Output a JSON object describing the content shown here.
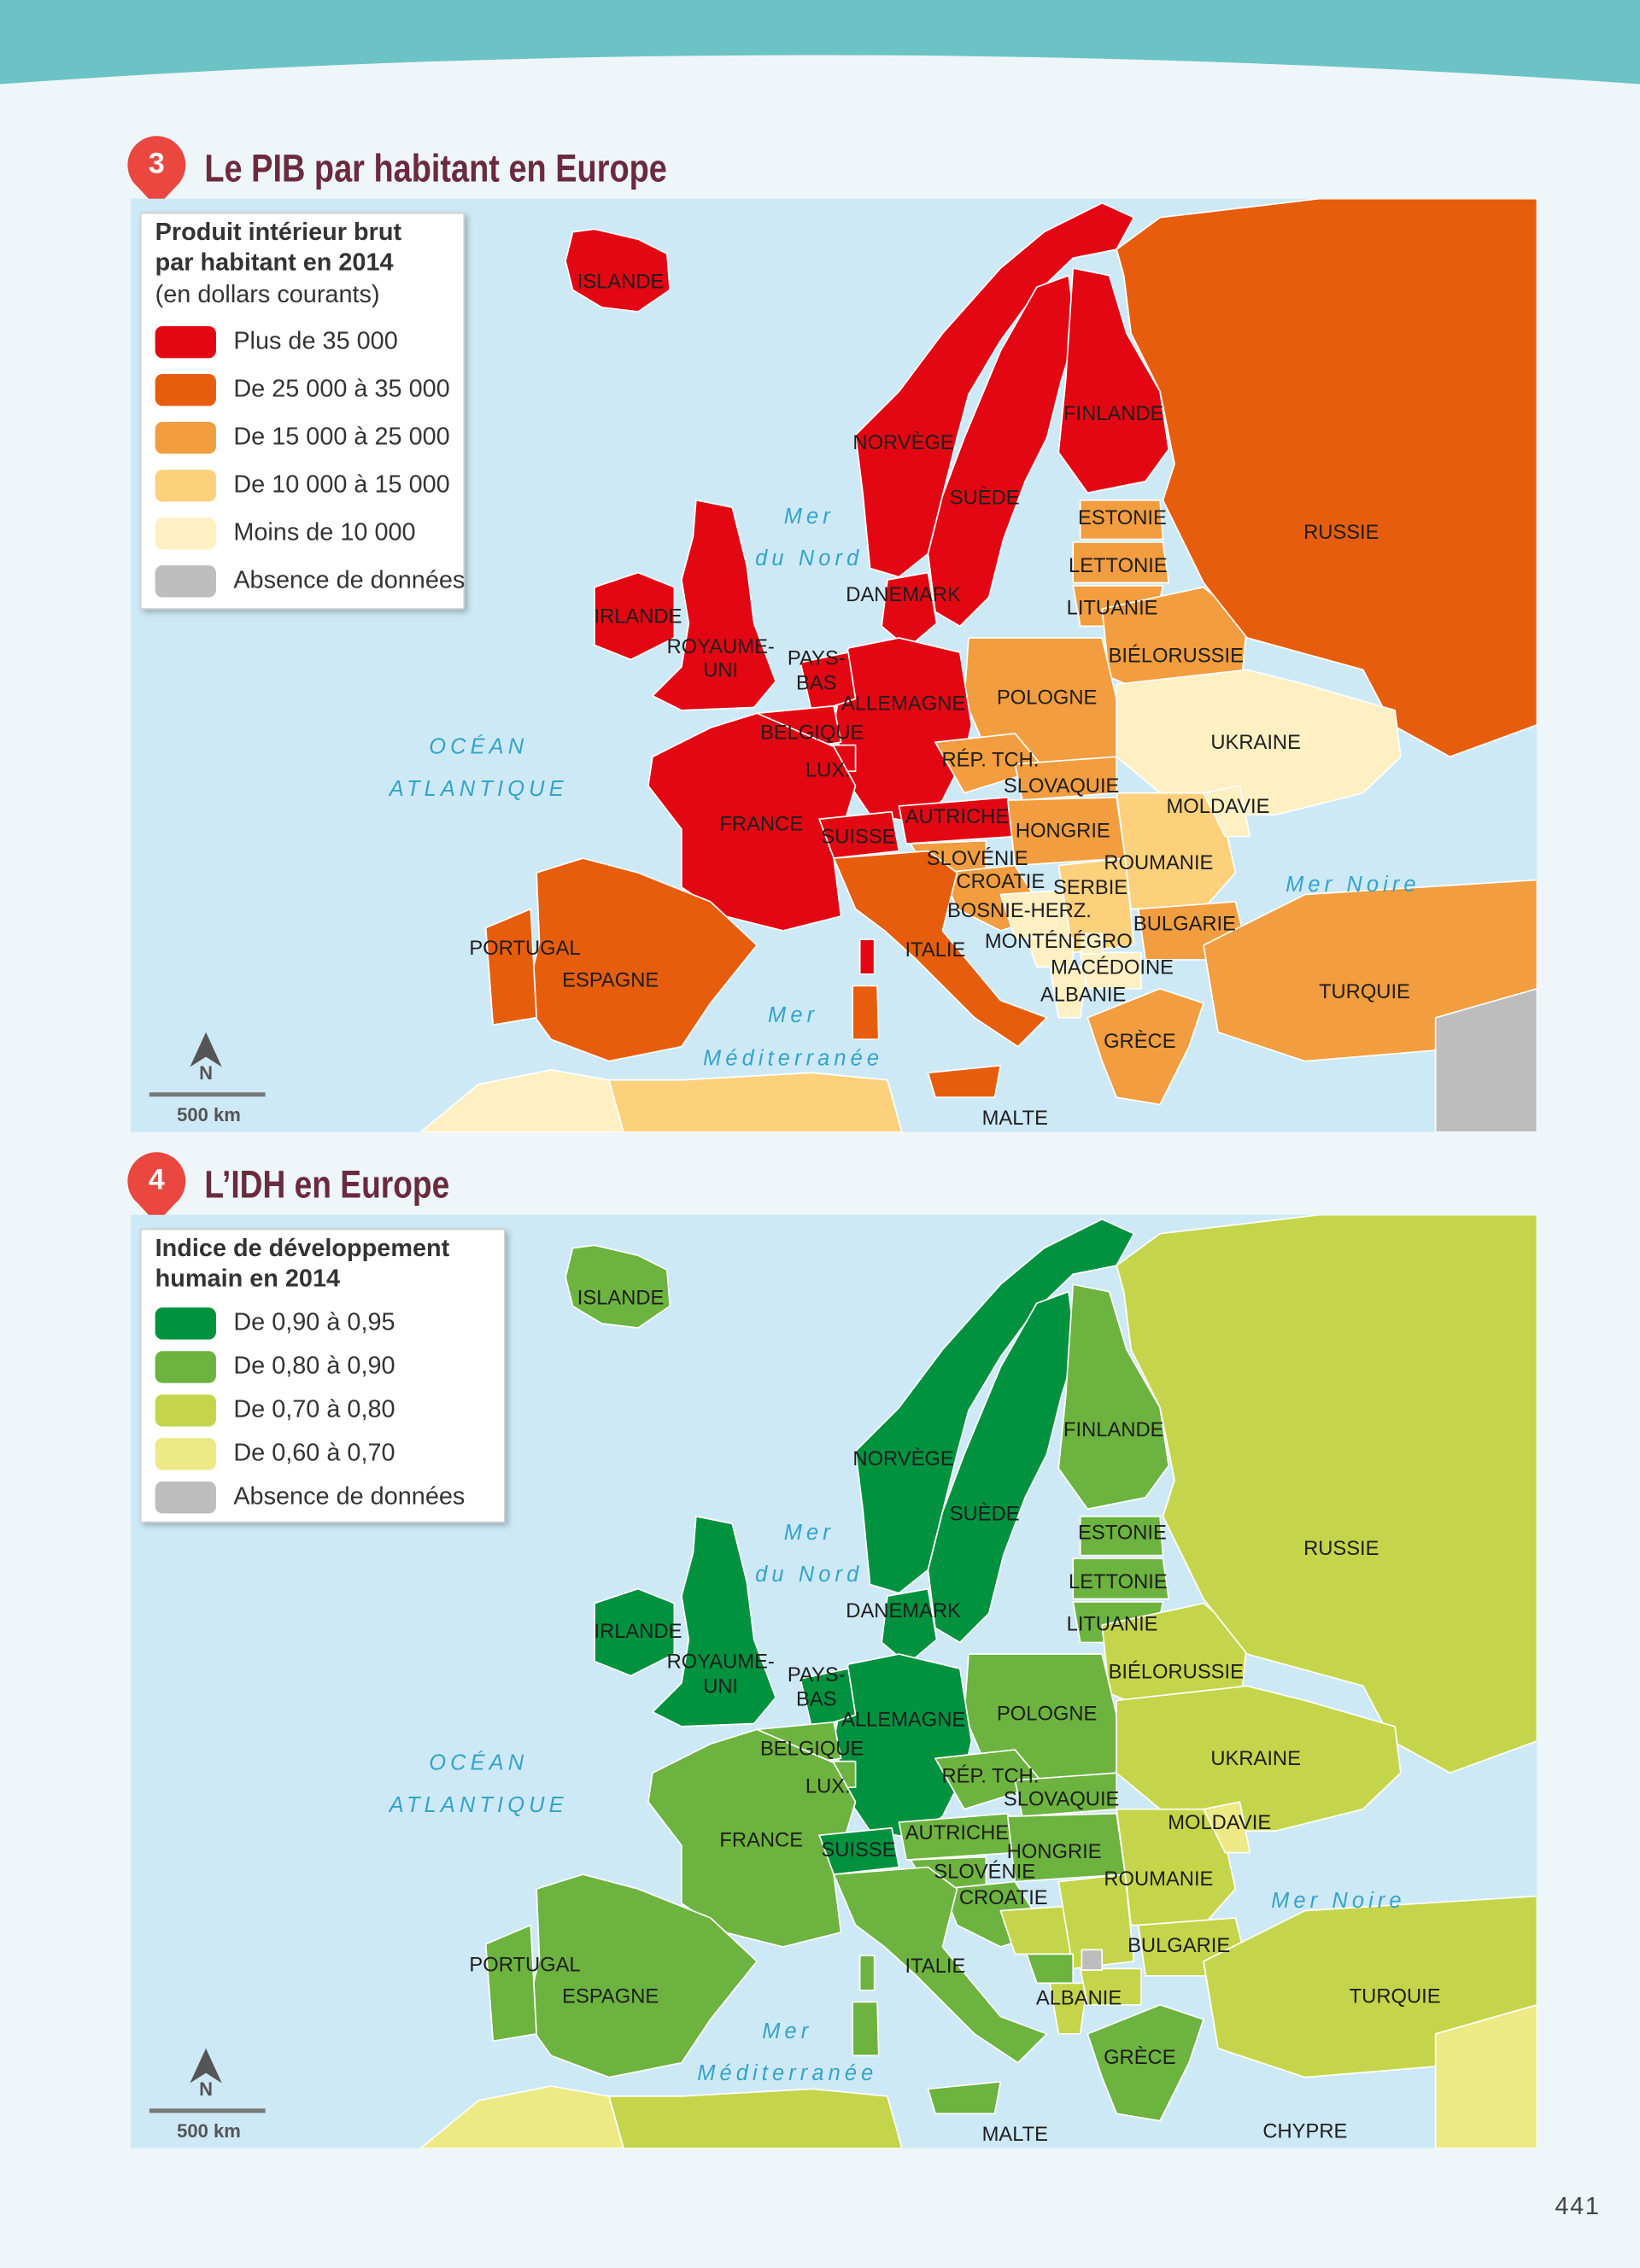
{
  "page_number": "441",
  "maps": [
    {
      "number": "3",
      "title": "Le PIB par habitant en Europe",
      "legend": {
        "title": [
          "Produit intérieur brut",
          "par habitant en 2014"
        ],
        "subtitle": "(en dollars courants)",
        "items": [
          {
            "label": "Plus de 35 000",
            "color": "#e30613"
          },
          {
            "label": "De 25 000 à 35 000",
            "color": "#e65d0e"
          },
          {
            "label": "De 15 000 à 25 000",
            "color": "#f29d3f"
          },
          {
            "label": "De 10 000 à 15 000",
            "color": "#fdd07c"
          },
          {
            "label": "Moins de 10 000",
            "color": "#fef0c3"
          },
          {
            "label": "Absence de données",
            "color": "#bdbdbd"
          }
        ]
      },
      "region_classes": [
        0,
        0,
        0,
        0,
        0,
        0,
        0,
        2,
        2,
        2,
        2,
        1,
        2,
        4,
        0,
        0,
        0,
        0,
        0,
        0,
        0,
        2,
        2,
        2,
        2,
        2,
        4,
        3,
        4,
        4,
        4,
        3,
        4,
        2,
        2,
        1,
        1,
        1,
        0,
        1,
        1,
        2,
        4,
        3,
        5,
        4
      ],
      "labels": [
        "ISLANDE",
        "NORVÈGE",
        "SUÈDE",
        "FINLANDE",
        "ESTONIE",
        "LETTONIE",
        "LITUANIE",
        "DANEMARK",
        "RUSSIE",
        "IRLANDE",
        "ROYAUME-",
        "UNI",
        "PAYS-",
        "BAS",
        "BIÉLORUSSIE",
        "POLOGNE",
        "ALLEMAGNE",
        "BELGIQUE",
        "UKRAINE",
        "RÉP. TCH.",
        "LUX.",
        "SLOVAQUIE",
        "MOLDAVIE",
        "FRANCE",
        "AUTRICHE",
        "SUISSE",
        "HONGRIE",
        "SLOVÉNIE",
        "ROUMANIE",
        "CROATIE",
        "SERBIE",
        "BOSNIE-HERZ.",
        "BULGARIE",
        "PORTUGAL",
        "ITALIE",
        "MONTÉNÉGRO",
        "MACÉDOINE",
        "ESPAGNE",
        "TURQUIE",
        "ALBANIE",
        "GRÈCE",
        "MALTE"
      ],
      "sea_labels": [
        "Mer",
        "du Nord",
        "OCÉAN",
        "ATLANTIQUE",
        "Mer Noire",
        "Mer",
        "Méditerranée"
      ],
      "north": "N",
      "scale": "500 km"
    },
    {
      "number": "4",
      "title": "L’IDH en Europe",
      "legend": {
        "title": [
          "Indice de développement",
          "humain en 2014"
        ],
        "items": [
          {
            "label": "De 0,90 à 0,95",
            "color": "#00923f"
          },
          {
            "label": "De 0,80 à 0,90",
            "color": "#6cb33f"
          },
          {
            "label": "De 0,70 à 0,80",
            "color": "#c5d54b"
          },
          {
            "label": "De 0,60 à 0,70",
            "color": "#ede985"
          },
          {
            "label": "Absence de données",
            "color": "#bdbdbd"
          }
        ]
      },
      "region_classes": [
        1,
        0,
        0,
        0,
        0,
        1,
        0,
        1,
        1,
        1,
        2,
        2,
        1,
        2,
        0,
        0,
        1,
        1,
        1,
        0,
        1,
        1,
        1,
        1,
        1,
        1,
        2,
        2,
        1,
        2,
        2,
        2,
        3,
        2,
        1,
        1,
        1,
        1,
        1,
        1,
        1,
        2,
        3,
        2,
        3,
        4
      ],
      "labels": [
        "ISLANDE",
        "NORVÈGE",
        "SUÈDE",
        "FINLANDE",
        "ESTONIE",
        "LETTONIE",
        "LITUANIE",
        "DANEMARK",
        "RUSSIE",
        "IRLANDE",
        "ROYAUME-",
        "UNI",
        "PAYS-",
        "BAS",
        "BIÉLORUSSIE",
        "POLOGNE",
        "ALLEMAGNE",
        "BELGIQUE",
        "UKRAINE",
        "RÉP. TCH.",
        "LUX.",
        "SLOVAQUIE",
        "MOLDAVIE",
        "FRANCE",
        "AUTRICHE",
        "SUISSE",
        "HONGRIE",
        "SLOVÉNIE",
        "ROUMANIE",
        "CROATIE",
        "BULGARIE",
        "PORTUGAL",
        "ITALIE",
        "ESPAGNE",
        "TURQUIE",
        "ALBANIE",
        "GRÈCE",
        "MALTE",
        "CHYPRE"
      ],
      "sea_labels": [
        "Mer",
        "du Nord",
        "OCÉAN",
        "ATLANTIQUE",
        "Mer Noire",
        "Mer",
        "Méditerranée"
      ],
      "north": "N",
      "scale": "500 km"
    }
  ]
}
